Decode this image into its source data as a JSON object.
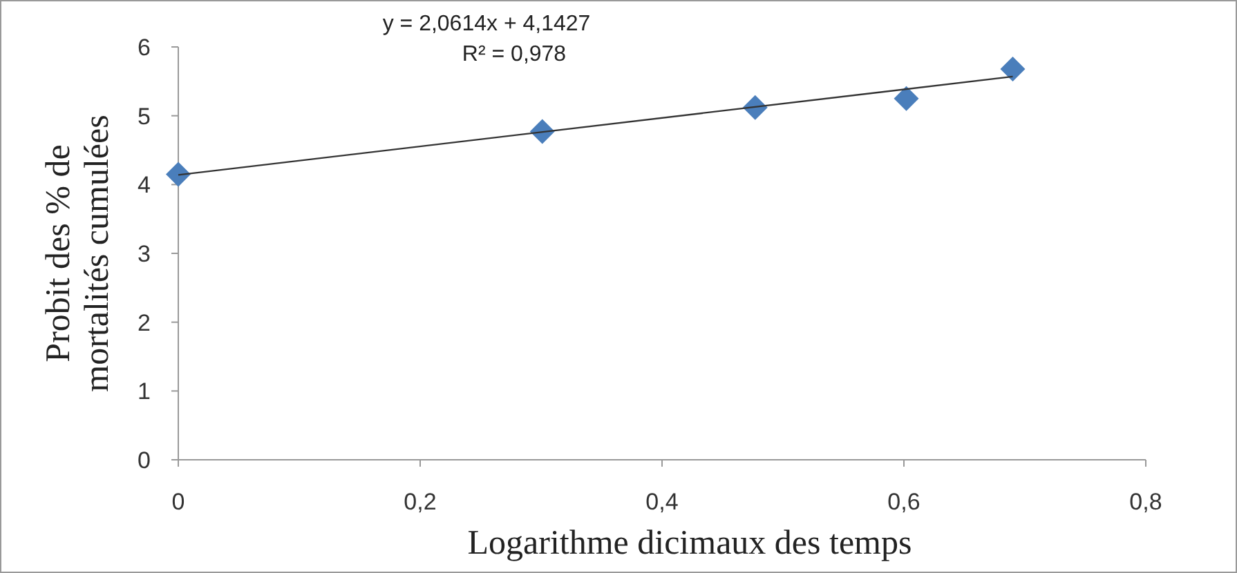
{
  "chart_data": {
    "type": "scatter",
    "xlabel": "Logarithme dicimaux des temps",
    "ylabel": "Probit des % de\nmortalités cumulées",
    "annotations": [
      "y = 2,0614x + 4,1427",
      "R² = 0,978"
    ],
    "series": [
      {
        "color": "#4a7ebb",
        "marker": "diamond",
        "x": [
          0,
          0.301,
          0.477,
          0.602,
          0.69
        ],
        "values": [
          4.15,
          4.77,
          5.12,
          5.25,
          5.68
        ]
      },
      {
        "type": "line",
        "color": "#333333",
        "marker": "none",
        "line_style": "solid",
        "x": [
          0,
          0.69
        ],
        "values": [
          4.14,
          5.57
        ]
      }
    ],
    "xlim": [
      0,
      0.8
    ],
    "xticks": [
      0,
      {
        "value": 0.2,
        "label": "0,2"
      },
      {
        "value": 0.4,
        "label": "0,4"
      },
      {
        "value": 0.6,
        "label": "0,6"
      },
      {
        "value": 0.8,
        "label": "0,8"
      }
    ],
    "ylim": [
      0,
      6
    ],
    "yticks": [
      0,
      1,
      2,
      3,
      4,
      5,
      6
    ],
    "grid": false
  }
}
